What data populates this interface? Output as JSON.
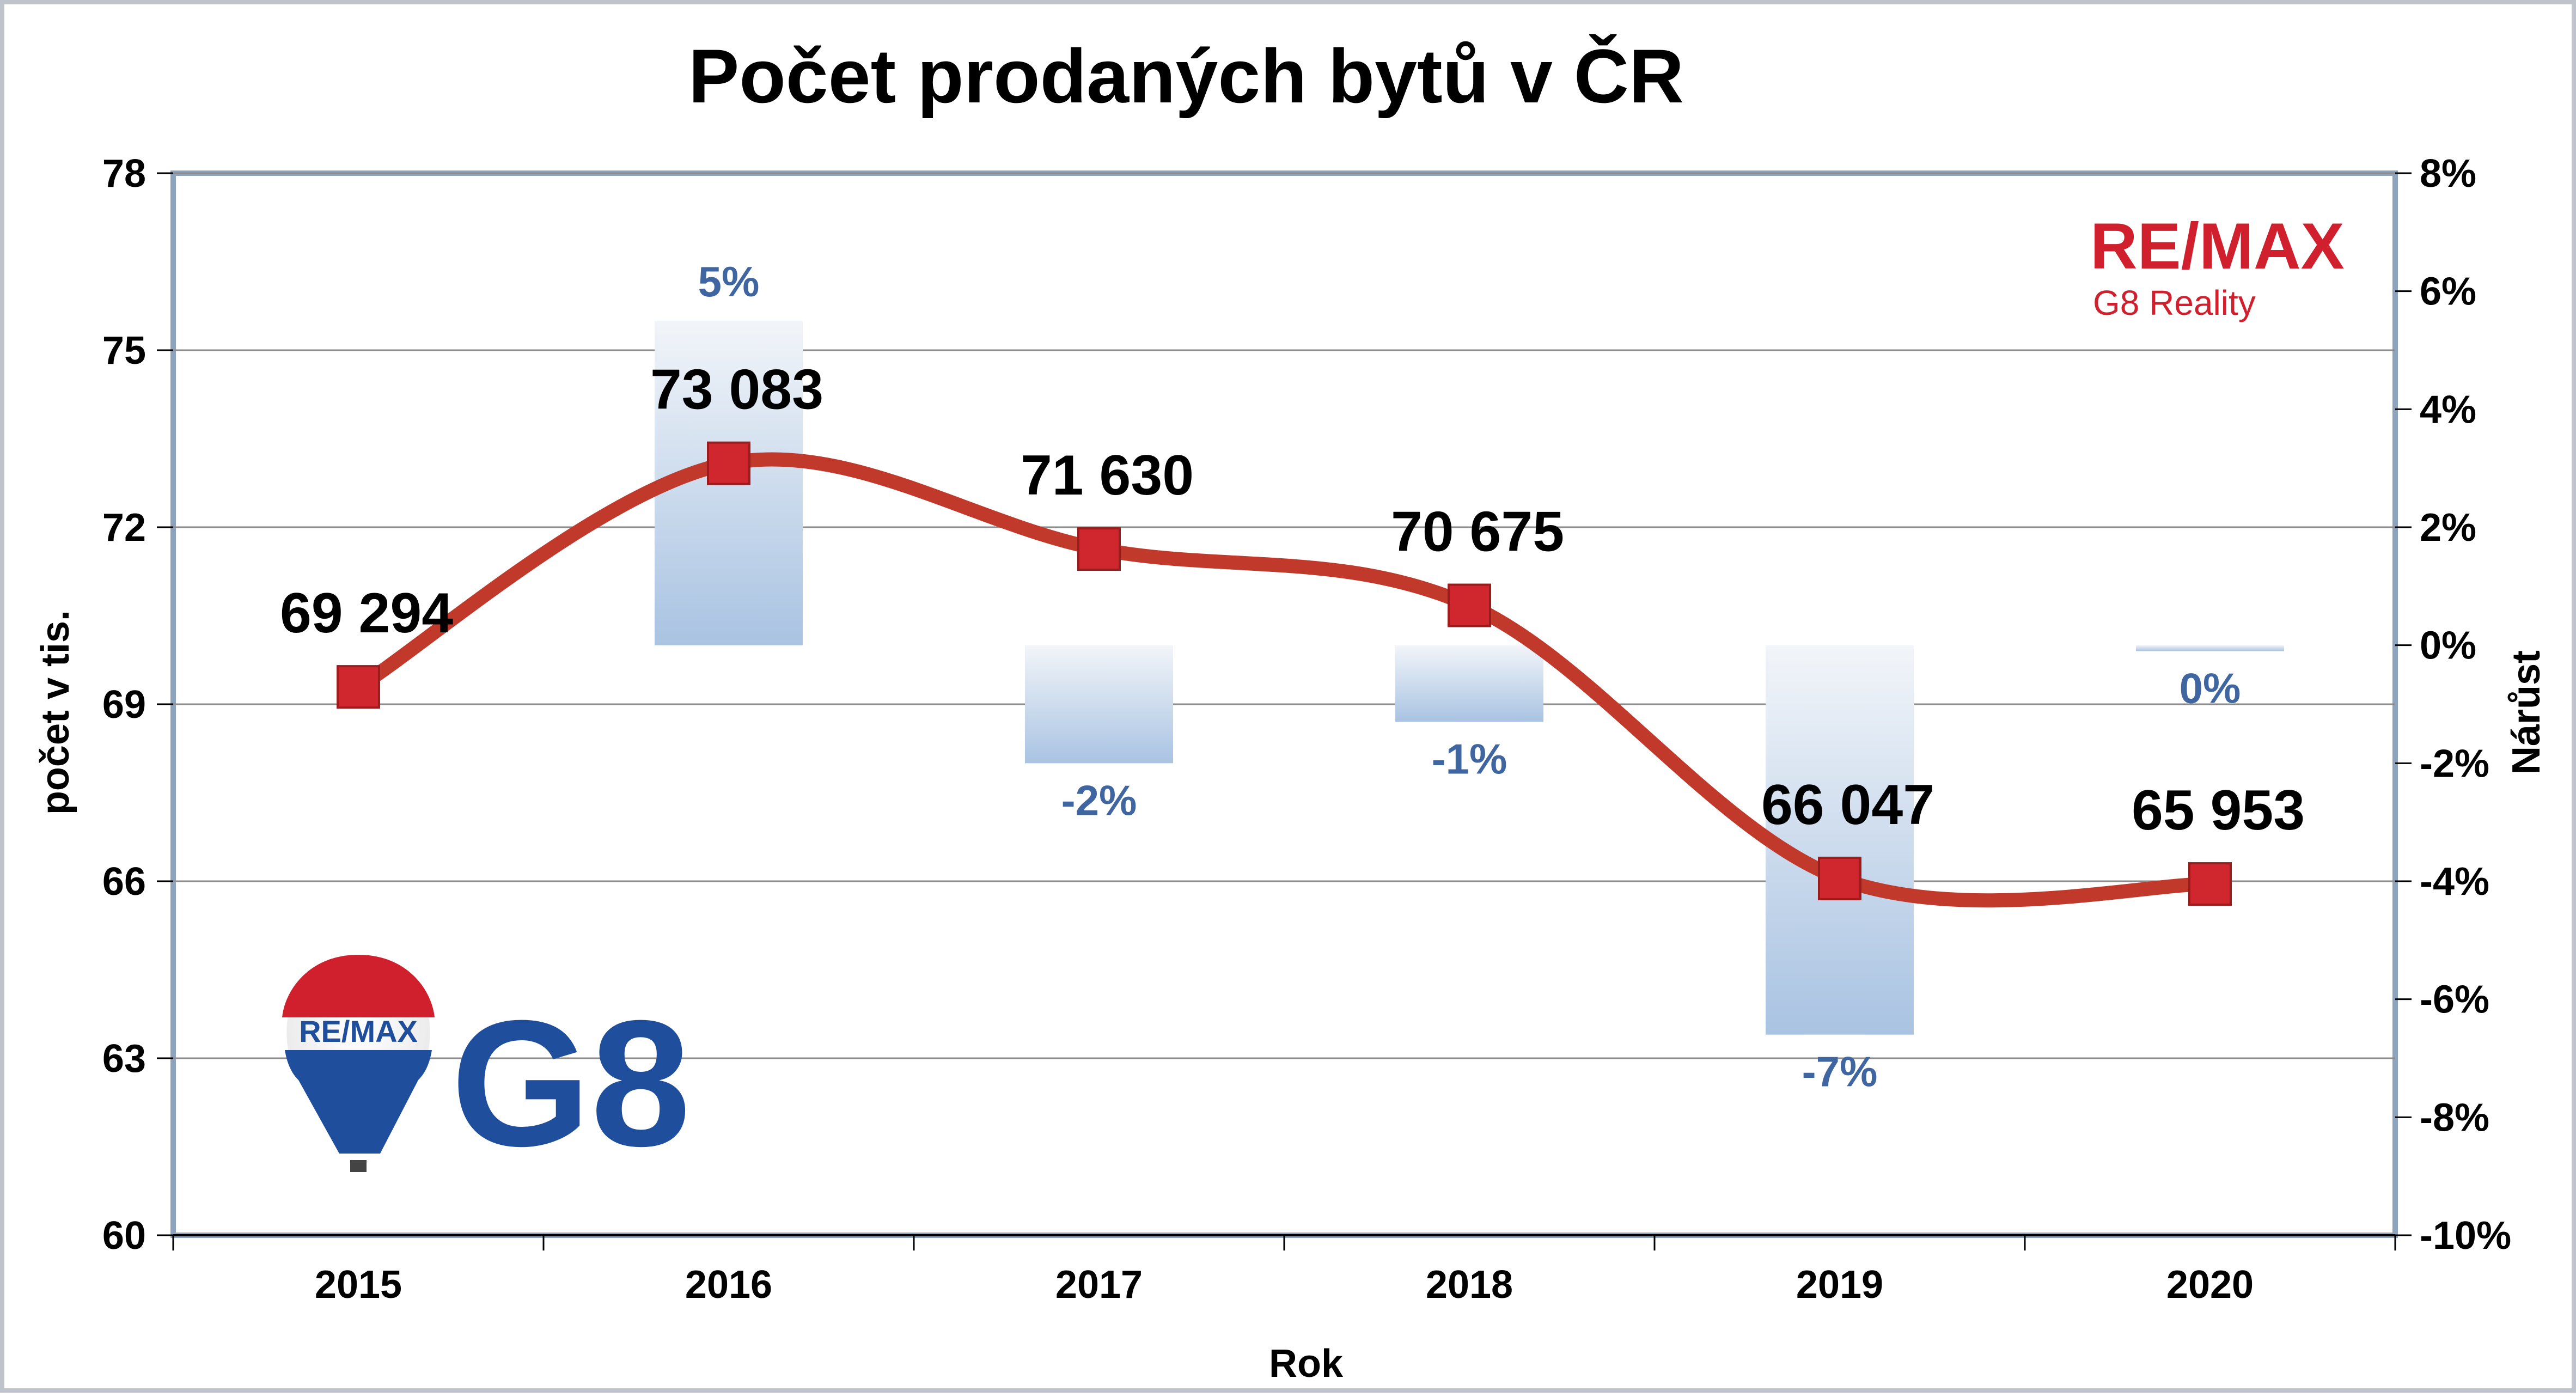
{
  "chart_data": {
    "type": "line+bar",
    "title": "Počet prodaných bytů v ČR",
    "xlabel": "Rok",
    "ylabel": "počet v tis.",
    "y2label": "Nárůst",
    "categories": [
      "2015",
      "2016",
      "2017",
      "2018",
      "2019",
      "2020"
    ],
    "ylim": [
      60,
      78
    ],
    "y_ticks": [
      "60",
      "63",
      "66",
      "69",
      "72",
      "75",
      "78"
    ],
    "y2lim": [
      -10,
      8
    ],
    "y2_ticks": [
      "-10%",
      "-8%",
      "-6%",
      "-4%",
      "-2%",
      "0%",
      "2%",
      "4%",
      "6%",
      "8%"
    ],
    "grid": true,
    "series": [
      {
        "name": "",
        "kind": "line",
        "axis": "left",
        "color": "#c0392b",
        "values": [
          69.294,
          73.083,
          71.63,
          70.675,
          66.047,
          65.953
        ],
        "labels": [
          "69 294",
          "73 083",
          "71 630",
          "70 675",
          "66 047",
          "65 953"
        ]
      },
      {
        "name": "",
        "kind": "bar",
        "axis": "right",
        "color": "#8fb0d8",
        "values": [
          null,
          5.5,
          -2,
          -1.3,
          -6.6,
          -0.1
        ],
        "labels": [
          "",
          "5%",
          "-2%",
          "-1%",
          "-7%",
          "0%"
        ]
      }
    ]
  },
  "logos": {
    "top_right_brand": "RE/MAX",
    "top_right_sub": "G8 Reality",
    "balloon_text": "RE/MAX",
    "big_mark": "G8",
    "brand_red": "#d0202e",
    "brand_blue": "#1f4e9c"
  }
}
